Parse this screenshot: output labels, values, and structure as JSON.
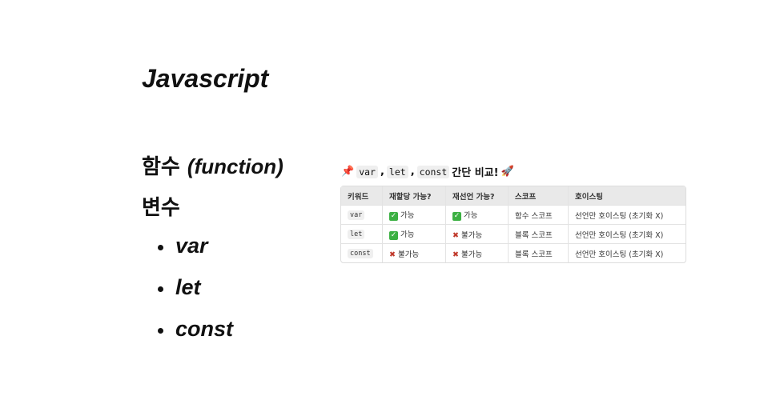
{
  "title": "Javascript",
  "headings": [
    "함수 (function)",
    "변수"
  ],
  "function_label": "함수",
  "function_en": "(function)",
  "bullets": [
    "var",
    "let",
    "const"
  ],
  "table": {
    "caption": {
      "icon": "pushpin",
      "parts": [
        "var",
        "let",
        "const"
      ],
      "text": "간단 비교!",
      "end_icon": "rocket"
    },
    "headers": [
      "키워드",
      "재할당 가능?",
      "재선언 가능?",
      "스코프",
      "호이스팅"
    ],
    "rows": [
      {
        "keyword": "var",
        "reassign": {
          "ok": true,
          "text": "가능"
        },
        "redeclare": {
          "ok": true,
          "text": "가능"
        },
        "scope": "함수 스코프",
        "hoisting": "선언만 호이스팅 (초기화 X)"
      },
      {
        "keyword": "let",
        "reassign": {
          "ok": true,
          "text": "가능"
        },
        "redeclare": {
          "ok": false,
          "text": "불가능"
        },
        "scope": "블록 스코프",
        "hoisting": "선언만 호이스팅 (초기화 X)"
      },
      {
        "keyword": "const",
        "reassign": {
          "ok": false,
          "text": "불가능"
        },
        "redeclare": {
          "ok": false,
          "text": "불가능"
        },
        "scope": "블록 스코프",
        "hoisting": "선언만 호이스팅 (초기화 X)"
      }
    ]
  }
}
